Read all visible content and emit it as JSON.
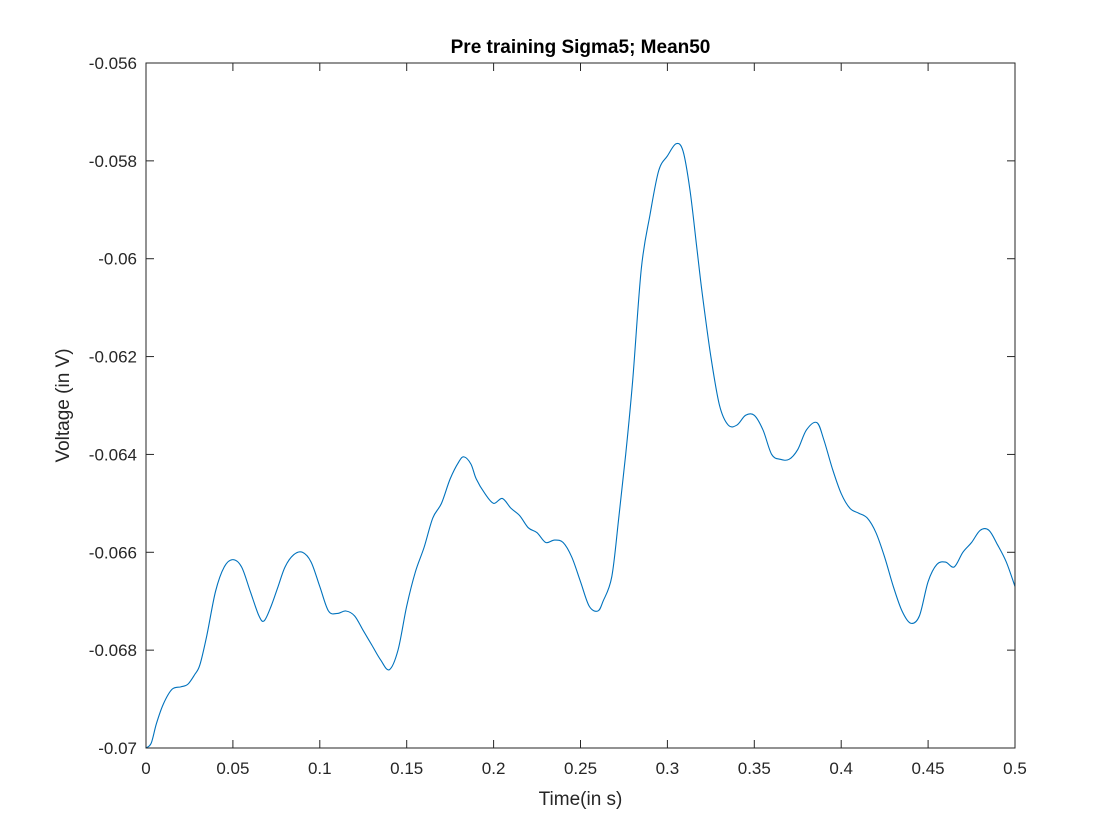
{
  "chart_data": {
    "type": "line",
    "title": "Pre training Sigma5; Mean50",
    "xlabel": "Time(in s)",
    "ylabel": "Voltage (in V)",
    "xlim": [
      0,
      0.5
    ],
    "ylim": [
      -0.07,
      -0.056
    ],
    "xticks": [
      "0",
      "0.05",
      "0.1",
      "0.15",
      "0.2",
      "0.25",
      "0.3",
      "0.35",
      "0.4",
      "0.45",
      "0.5"
    ],
    "yticks": [
      "-0.07",
      "-0.068",
      "-0.066",
      "-0.064",
      "-0.062",
      "-0.06",
      "-0.058",
      "-0.056"
    ],
    "grid": false,
    "line_color": "#0072BD",
    "series": [
      {
        "x": [
          0,
          0.003,
          0.006,
          0.01,
          0.015,
          0.02,
          0.024,
          0.028,
          0.031,
          0.035,
          0.04,
          0.045,
          0.05,
          0.055,
          0.06,
          0.065,
          0.068,
          0.072,
          0.076,
          0.08,
          0.085,
          0.09,
          0.095,
          0.1,
          0.105,
          0.11,
          0.115,
          0.12,
          0.125,
          0.13,
          0.135,
          0.14,
          0.145,
          0.15,
          0.155,
          0.16,
          0.165,
          0.17,
          0.175,
          0.18,
          0.183,
          0.187,
          0.19,
          0.195,
          0.2,
          0.205,
          0.21,
          0.215,
          0.22,
          0.225,
          0.23,
          0.235,
          0.24,
          0.245,
          0.25,
          0.255,
          0.26,
          0.263,
          0.268,
          0.272,
          0.276,
          0.28,
          0.285,
          0.29,
          0.295,
          0.3,
          0.305,
          0.309,
          0.313,
          0.317,
          0.32,
          0.325,
          0.33,
          0.335,
          0.34,
          0.345,
          0.35,
          0.355,
          0.36,
          0.365,
          0.37,
          0.375,
          0.38,
          0.386,
          0.39,
          0.395,
          0.4,
          0.405,
          0.41,
          0.415,
          0.42,
          0.425,
          0.43,
          0.435,
          0.44,
          0.445,
          0.45,
          0.455,
          0.46,
          0.465,
          0.47,
          0.475,
          0.48,
          0.485,
          0.49,
          0.495,
          0.5
        ],
        "y": [
          -0.07,
          -0.0699,
          -0.0695,
          -0.0691,
          -0.0688,
          -0.06875,
          -0.0687,
          -0.0685,
          -0.0683,
          -0.0677,
          -0.0668,
          -0.0663,
          -0.06615,
          -0.0663,
          -0.0668,
          -0.0673,
          -0.0674,
          -0.0671,
          -0.0667,
          -0.0663,
          -0.06605,
          -0.066,
          -0.0662,
          -0.0667,
          -0.0672,
          -0.06725,
          -0.0672,
          -0.0673,
          -0.0676,
          -0.0679,
          -0.0682,
          -0.0684,
          -0.068,
          -0.0671,
          -0.0664,
          -0.0659,
          -0.0653,
          -0.065,
          -0.0645,
          -0.06415,
          -0.06405,
          -0.0642,
          -0.0645,
          -0.0648,
          -0.065,
          -0.0649,
          -0.0651,
          -0.06525,
          -0.0655,
          -0.0656,
          -0.0658,
          -0.06575,
          -0.0658,
          -0.0661,
          -0.0666,
          -0.0671,
          -0.0672,
          -0.067,
          -0.0665,
          -0.0653,
          -0.064,
          -0.0625,
          -0.0602,
          -0.0591,
          -0.0582,
          -0.0579,
          -0.05765,
          -0.0578,
          -0.0586,
          -0.0598,
          -0.0607,
          -0.062,
          -0.063,
          -0.0634,
          -0.0634,
          -0.0632,
          -0.0632,
          -0.0635,
          -0.064,
          -0.0641,
          -0.0641,
          -0.0639,
          -0.0635,
          -0.06335,
          -0.0637,
          -0.0643,
          -0.0648,
          -0.0651,
          -0.0652,
          -0.0653,
          -0.0656,
          -0.0661,
          -0.0667,
          -0.0672,
          -0.06745,
          -0.0673,
          -0.0666,
          -0.06625,
          -0.0662,
          -0.0663,
          -0.066,
          -0.0658,
          -0.06555,
          -0.06555,
          -0.06585,
          -0.0662,
          -0.0667
        ]
      }
    ]
  }
}
